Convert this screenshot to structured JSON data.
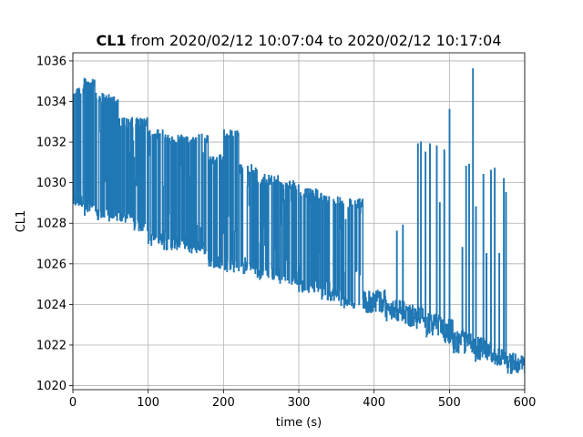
{
  "chart_data": {
    "type": "line",
    "title_bold": "CL1",
    "title_rest": " from 2020/02/12 10:07:04 to 2020/02/12 10:17:04",
    "xlabel": "time (s)",
    "ylabel": "CL1",
    "xlim": [
      0,
      600
    ],
    "ylim": [
      1019.8,
      1036.4
    ],
    "xticks": [
      0,
      100,
      200,
      300,
      400,
      500,
      600
    ],
    "yticks": [
      1020,
      1022,
      1024,
      1026,
      1028,
      1030,
      1032,
      1034,
      1036
    ],
    "grid": true,
    "series_color": "#1f77b4",
    "series": [
      {
        "bands": [
          {
            "x": [
              0,
              15
            ],
            "low": 1028.8,
            "high": 1034.8
          },
          {
            "x": [
              15,
              30
            ],
            "low": 1028.4,
            "high": 1035.2
          },
          {
            "x": [
              30,
              60
            ],
            "low": 1028.1,
            "high": 1034.4
          },
          {
            "x": [
              60,
              80
            ],
            "low": 1028.0,
            "high": 1033.2
          },
          {
            "x": [
              80,
              100
            ],
            "low": 1027.6,
            "high": 1033.2
          },
          {
            "x": [
              100,
              120
            ],
            "low": 1026.9,
            "high": 1032.6
          },
          {
            "x": [
              120,
              150
            ],
            "low": 1026.7,
            "high": 1032.4
          },
          {
            "x": [
              150,
              180
            ],
            "low": 1026.5,
            "high": 1032.4
          },
          {
            "x": [
              180,
              200
            ],
            "low": 1025.8,
            "high": 1031.4
          },
          {
            "x": [
              200,
              220
            ],
            "low": 1025.6,
            "high": 1032.6
          },
          {
            "x": [
              220,
              245
            ],
            "low": 1025.5,
            "high": 1030.9
          },
          {
            "x": [
              245,
              275
            ],
            "low": 1025.2,
            "high": 1030.4
          },
          {
            "x": [
              275,
              300
            ],
            "low": 1025.0,
            "high": 1030.1
          },
          {
            "x": [
              300,
              330
            ],
            "low": 1024.6,
            "high": 1029.7
          },
          {
            "x": [
              330,
              355
            ],
            "low": 1024.2,
            "high": 1029.4
          },
          {
            "x": [
              355,
              385
            ],
            "low": 1023.8,
            "high": 1029.2
          },
          {
            "x": [
              385,
              415
            ],
            "low": 1023.6,
            "high": 1024.7
          },
          {
            "x": [
              415,
              440
            ],
            "low": 1023.2,
            "high": 1024.2
          },
          {
            "x": [
              440,
              465
            ],
            "low": 1022.8,
            "high": 1024.0
          },
          {
            "x": [
              465,
              490
            ],
            "low": 1022.4,
            "high": 1023.6
          },
          {
            "x": [
              490,
              505
            ],
            "low": 1022.0,
            "high": 1023.3
          },
          {
            "x": [
              505,
              530
            ],
            "low": 1021.6,
            "high": 1022.8
          },
          {
            "x": [
              530,
              555
            ],
            "low": 1021.2,
            "high": 1022.4
          },
          {
            "x": [
              555,
              575
            ],
            "low": 1021.0,
            "high": 1021.8
          },
          {
            "x": [
              575,
              600
            ],
            "low": 1020.6,
            "high": 1021.6
          }
        ],
        "spikes": [
          [
            430,
            1027.6
          ],
          [
            438,
            1027.9
          ],
          [
            458,
            1031.9
          ],
          [
            462,
            1032.0
          ],
          [
            468,
            1031.5
          ],
          [
            474,
            1031.9
          ],
          [
            483,
            1031.8
          ],
          [
            487,
            1029.0
          ],
          [
            493,
            1031.6
          ],
          [
            500,
            1033.6
          ],
          [
            517,
            1026.8
          ],
          [
            522,
            1030.8
          ],
          [
            526,
            1030.9
          ],
          [
            531,
            1035.6
          ],
          [
            535,
            1028.8
          ],
          [
            545,
            1030.4
          ],
          [
            549,
            1026.5
          ],
          [
            555,
            1030.6
          ],
          [
            560,
            1030.7
          ],
          [
            566,
            1026.5
          ],
          [
            572,
            1030.2
          ],
          [
            575,
            1029.5
          ]
        ],
        "end_value": 1020.6
      }
    ]
  }
}
